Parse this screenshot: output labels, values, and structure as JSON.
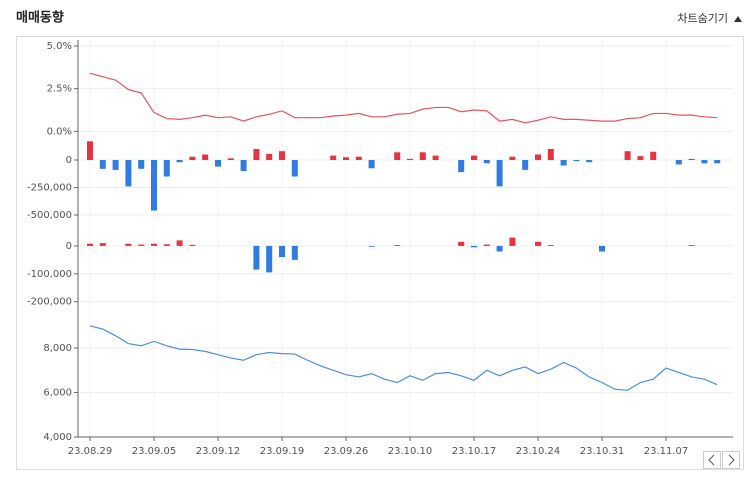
{
  "header": {
    "title": "매매동향",
    "toggle": "차트숨기기"
  },
  "chart_data": [
    {
      "type": "line",
      "color": "#e8555c",
      "values": [
        3.4,
        3.2,
        3.0,
        2.45,
        2.25,
        1.1,
        0.75,
        0.7,
        0.8,
        0.95,
        0.8,
        0.85,
        0.6,
        0.85,
        1.0,
        1.2,
        0.8,
        0.8,
        0.8,
        0.9,
        0.95,
        1.05,
        0.85,
        0.85,
        1.0,
        1.05,
        1.3,
        1.4,
        1.4,
        1.15,
        1.25,
        1.2,
        0.6,
        0.7,
        0.5,
        0.65,
        0.85,
        0.7,
        0.7,
        0.65,
        0.6,
        0.6,
        0.75,
        0.8,
        1.05,
        1.05,
        0.95,
        0.95,
        0.85,
        0.8
      ],
      "ylim": [
        -0.8,
        5.35
      ],
      "yticks": [
        {
          "value": 0,
          "label": "0.0%"
        },
        {
          "value": 2.5,
          "label": "2.5%"
        },
        {
          "value": 5,
          "label": "5.0%"
        }
      ],
      "grid": true
    },
    {
      "type": "bar",
      "color_positive": "#e8333f",
      "color_negative": "#2f7de1",
      "values": [
        170000,
        -80000,
        -90000,
        -240000,
        -80000,
        -460000,
        -150000,
        -20000,
        30000,
        50000,
        -60000,
        15000,
        -100000,
        100000,
        55000,
        80000,
        -150000,
        0,
        0,
        40000,
        25000,
        30000,
        -75000,
        0,
        70000,
        10000,
        70000,
        40000,
        0,
        -110000,
        40000,
        -30000,
        -240000,
        30000,
        -90000,
        50000,
        100000,
        -50000,
        -10000,
        -20000,
        0,
        0,
        80000,
        35000,
        75000,
        0,
        -40000,
        10000,
        -30000,
        -30000
      ],
      "ylim": [
        -600000,
        200000
      ],
      "yticks": [
        0,
        {
          "value": -250000,
          "label": "-250,000"
        },
        {
          "value": -500000,
          "label": "-500,000"
        }
      ],
      "grid": true
    },
    {
      "type": "bar",
      "color_positive": "#e8333f",
      "color_negative": "#2f7de1",
      "values": [
        8000,
        10000,
        0,
        8000,
        5000,
        8000,
        6000,
        20000,
        4000,
        0,
        0,
        0,
        0,
        -85000,
        -95000,
        -40000,
        -50000,
        0,
        0,
        0,
        0,
        0,
        -3000,
        0,
        3000,
        0,
        0,
        0,
        0,
        15000,
        -5000,
        5000,
        -20000,
        30000,
        0,
        15000,
        3000,
        0,
        0,
        0,
        -20000,
        0,
        0,
        0,
        0,
        0,
        0,
        3000,
        0,
        0
      ],
      "ylim": [
        -230000,
        50000
      ],
      "yticks": [
        0,
        {
          "value": -100000,
          "label": "-100,000"
        },
        {
          "value": -200000,
          "label": "-200,000"
        }
      ],
      "grid": true
    },
    {
      "type": "line",
      "color": "#4a90e2",
      "categories": [
        "23.08.29",
        null,
        null,
        null,
        null,
        "23.09.05",
        null,
        null,
        null,
        null,
        "23.09.12",
        null,
        null,
        null,
        null,
        "23.09.19",
        null,
        null,
        null,
        null,
        "23.09.26",
        null,
        null,
        null,
        null,
        "23.10.10",
        null,
        null,
        null,
        null,
        "23.10.17",
        null,
        null,
        null,
        null,
        "23.10.24",
        null,
        null,
        null,
        null,
        "23.10.31",
        null,
        null,
        null,
        null,
        "23.11.07",
        null,
        null,
        null,
        null
      ],
      "values": [
        9000,
        8850,
        8550,
        8200,
        8100,
        8300,
        8100,
        7950,
        7930,
        7850,
        7700,
        7550,
        7450,
        7700,
        7800,
        7750,
        7730,
        7450,
        7200,
        7000,
        6800,
        6700,
        6850,
        6600,
        6450,
        6750,
        6550,
        6850,
        6900,
        6750,
        6550,
        7000,
        6750,
        7000,
        7150,
        6850,
        7050,
        7350,
        7100,
        6700,
        6450,
        6150,
        6100,
        6450,
        6600,
        7100,
        6900,
        6700,
        6600,
        6350
      ],
      "ylim": [
        4000,
        9350
      ],
      "yticks": [
        {
          "value": 4000,
          "label": "4,000"
        },
        {
          "value": 6000,
          "label": "6,000"
        },
        {
          "value": 8000,
          "label": "8,000"
        }
      ],
      "grid": true
    }
  ]
}
